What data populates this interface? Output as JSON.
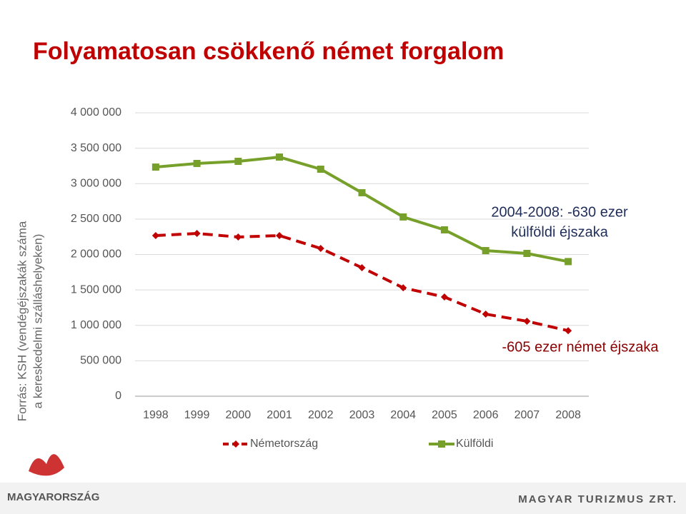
{
  "chart_data": {
    "type": "line",
    "title": "Folyamatosan csökkenő német forgalom",
    "y_label": [
      "Forrás: KSH (vendégéjszakák száma",
      "a kereskedelmi szálláshelyeken)"
    ],
    "categories": [
      "1998",
      "1999",
      "2000",
      "2001",
      "2002",
      "2003",
      "2004",
      "2005",
      "2006",
      "2007",
      "2008"
    ],
    "series": [
      {
        "name": "Németország",
        "color": "#c00000",
        "dashed": true,
        "marker": "diamond",
        "values": [
          2267000,
          2297000,
          2247000,
          2267000,
          2086000,
          1814000,
          1530000,
          1400000,
          1159000,
          1058000,
          925000
        ]
      },
      {
        "name": "Külföldi",
        "color": "#76a02a",
        "dashed": false,
        "marker": "square",
        "values": [
          3234000,
          3285000,
          3315000,
          3375000,
          3204000,
          2872000,
          2530000,
          2348000,
          2055000,
          2015000,
          1900000
        ]
      }
    ],
    "ylim": [
      0,
      4000000
    ],
    "yticks": [
      0,
      {
        "value": 500000,
        "label": "500 000"
      },
      {
        "value": 1000000,
        "label": "1 000 000"
      },
      {
        "value": 1500000,
        "label": "1 500 000"
      },
      {
        "value": 2000000,
        "label": "2 000 000"
      },
      {
        "value": 2500000,
        "label": "2 500 000"
      },
      {
        "value": 3000000,
        "label": "3 000 000"
      },
      {
        "value": 3500000,
        "label": "3 500 000"
      },
      {
        "value": 4000000,
        "label": "4 000 000"
      }
    ],
    "grid": true,
    "legend": "bottom",
    "annotations": [
      {
        "lines": [
          "2004-2008: -630 ezer",
          "külföldi éjszaka"
        ],
        "color": "#1f2d5a"
      },
      {
        "lines": [
          "-605 ezer német éjszaka"
        ],
        "color": "#8b0000"
      }
    ],
    "footer_left": "MAGYARORSZÁG",
    "footer_right": "MAGYAR TURIZMUS ZRT."
  }
}
